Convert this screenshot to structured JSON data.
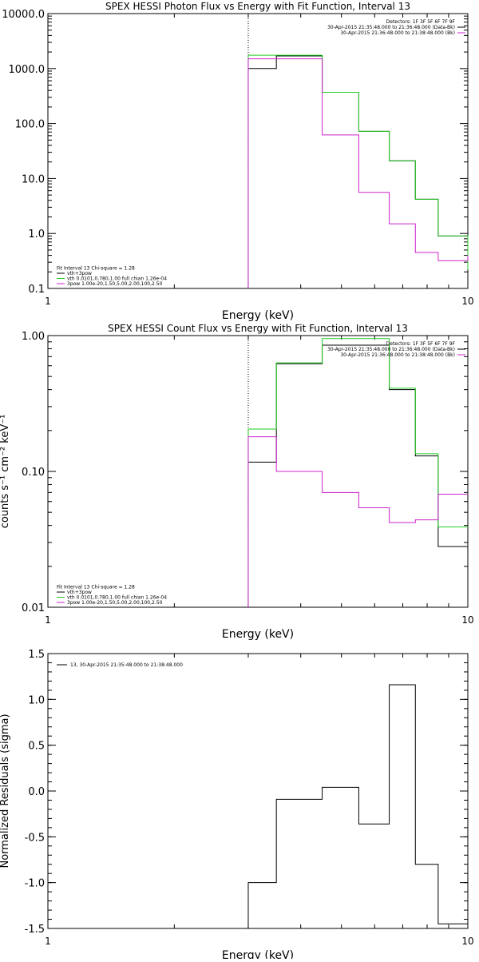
{
  "colors": {
    "black": "#000000",
    "green": "#22cc22",
    "magenta": "#cc22cc"
  },
  "chart_data": [
    {
      "type": "line",
      "title": "SPEX HESSI Photon Flux vs Energy with Fit Function, Interval 13",
      "xlabel": "Energy (keV)",
      "ylabel": "",
      "xscale": "log",
      "yscale": "log",
      "xlim": [
        1,
        10
      ],
      "ylim": [
        0.1,
        10000
      ],
      "xticks": [
        "1",
        "10"
      ],
      "yticks": [
        {
          "value": 0.1,
          "label": "0.1"
        },
        {
          "value": 1,
          "label": "1.0"
        },
        {
          "value": 10,
          "label": "10.0"
        },
        {
          "value": 100,
          "label": "100.0"
        },
        {
          "value": 1000,
          "label": "1000.0"
        },
        {
          "value": 10000,
          "label": "10000.0"
        }
      ],
      "marker_line_x": 3,
      "edges": [
        3,
        3.5,
        4.5,
        5.5,
        6.5,
        7.5,
        8.5,
        10
      ],
      "series": [
        {
          "color": "black",
          "values": [
            1000,
            1700,
            370,
            72,
            21,
            4.2,
            0.9,
            0.16
          ]
        },
        {
          "color": "green",
          "values": [
            1750,
            1750,
            370,
            72,
            21,
            4.2,
            0.9,
            0.22
          ]
        },
        {
          "color": "magenta",
          "values": [
            1500,
            1500,
            62,
            5.6,
            1.5,
            0.45,
            0.32,
            0.4
          ]
        }
      ],
      "legend_tr": [
        {
          "text": "Detectors: 1F 3F 5F 6F 7F 9F",
          "color": "black"
        },
        {
          "text": "30-Apr-2015 21:35:48.000 to 21:36:48.000 (Data-Bk)",
          "color": "black"
        },
        {
          "text": "30-Apr-2015 21:36:48.000 to 21:38:48.000 (Bk)",
          "color": "magenta"
        }
      ],
      "legend_bl": [
        {
          "text": "Fit Interval 13    Chi-square = 1.28",
          "color": "black"
        },
        {
          "text": "vth+3pow",
          "color": "black"
        },
        {
          "text": "vth 0.0101,0.780,1.00  full chian 1.26e-04",
          "color": "green"
        },
        {
          "text": "3pow 1.00e-20,1.50,5.00,2.00,100,2.50",
          "color": "magenta"
        }
      ]
    },
    {
      "type": "line",
      "title": "SPEX HESSI Count Flux vs Energy with Fit Function, Interval 13",
      "xlabel": "Energy (keV)",
      "ylabel": "counts s⁻¹ cm⁻² keV⁻¹",
      "xscale": "log",
      "yscale": "log",
      "xlim": [
        1,
        10
      ],
      "ylim": [
        0.01,
        1.0
      ],
      "xticks": [
        "1",
        "10"
      ],
      "yticks": [
        {
          "value": 0.01,
          "label": "0.01"
        },
        {
          "value": 0.1,
          "label": "0.10"
        },
        {
          "value": 1,
          "label": "1.00"
        }
      ],
      "marker_line_x": 3,
      "edges": [
        3,
        3.5,
        4.5,
        5.5,
        6.5,
        7.5,
        8.5,
        10
      ],
      "series": [
        {
          "color": "black",
          "values": [
            0.117,
            0.62,
            0.85,
            0.85,
            0.4,
            0.13,
            0.028,
            0.039
          ]
        },
        {
          "color": "green",
          "values": [
            0.205,
            0.63,
            0.95,
            0.95,
            0.41,
            0.135,
            0.039,
            0.039
          ]
        },
        {
          "color": "magenta",
          "values": [
            0.18,
            0.1,
            0.07,
            0.054,
            0.042,
            0.044,
            0.068,
            0.068
          ]
        }
      ],
      "legend_tr": [
        {
          "text": "Detectors: 1F 3F 5F 6F 7F 9F",
          "color": "black"
        },
        {
          "text": "30-Apr-2015 21:35:48.000 to 21:36:48.000 (Data-Bk)",
          "color": "black"
        },
        {
          "text": "30-Apr-2015 21:36:48.000 to 21:38:48.000 (Bk)",
          "color": "magenta"
        }
      ],
      "legend_bl": [
        {
          "text": "Fit Interval 13    Chi-square = 1.28",
          "color": "black"
        },
        {
          "text": "vth+3pow",
          "color": "black"
        },
        {
          "text": "vth 0.0101,0.780,1.00  full chian 1.26e-04",
          "color": "green"
        },
        {
          "text": "3pow 1.00e-20,1.50,5.00,2.00,100,2.50",
          "color": "magenta"
        }
      ]
    },
    {
      "type": "line",
      "title": "",
      "xlabel": "Energy (keV)",
      "ylabel": "Normalized Residuals (sigma)",
      "xscale": "log",
      "yscale": "linear",
      "xlim": [
        1,
        10
      ],
      "ylim": [
        -1.5,
        1.5
      ],
      "xticks": [
        "1",
        "10"
      ],
      "yticks": [
        {
          "value": -1.5,
          "label": "-1.5"
        },
        {
          "value": -1.0,
          "label": "-1.0"
        },
        {
          "value": -0.5,
          "label": "-0.5"
        },
        {
          "value": 0.0,
          "label": "0.0"
        },
        {
          "value": 0.5,
          "label": "0.5"
        },
        {
          "value": 1.0,
          "label": "1.0"
        },
        {
          "value": 1.5,
          "label": "1.5"
        }
      ],
      "edges": [
        3,
        3.5,
        4.5,
        5.5,
        6.5,
        7.5,
        8.5,
        10
      ],
      "series": [
        {
          "color": "black",
          "values": [
            -1.0,
            -0.09,
            0.04,
            -0.36,
            1.16,
            -0.8,
            -1.45
          ]
        }
      ],
      "legend_tl": [
        {
          "text": "13, 30-Apr-2015 21:35:48.000 to 21:38:48.000",
          "color": "black"
        }
      ]
    }
  ]
}
